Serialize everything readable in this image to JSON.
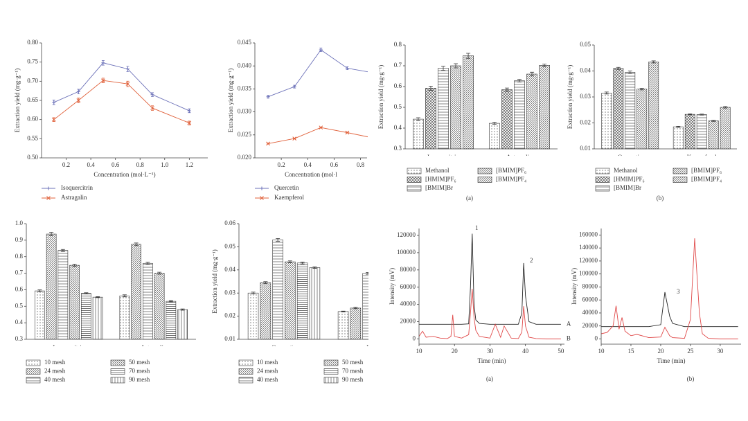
{
  "chart_data": [
    {
      "type": "line",
      "xlabel": "Concentration (mol·L⁻¹)",
      "ylabel": "Extraction yield (mg·g⁻¹)",
      "x": [
        0.1,
        0.3,
        0.5,
        0.7,
        0.9,
        1.2
      ],
      "xlim": [
        0,
        1.35
      ],
      "xticks": [
        0.2,
        0.4,
        0.6,
        0.8,
        {
          "value": 1,
          "label": "1.0"
        },
        1.2
      ],
      "ylim": [
        0.5,
        0.8
      ],
      "yticks": [
        {
          "value": 0.5,
          "label": "0.50"
        },
        0.55,
        {
          "value": 0.6,
          "label": "0.60"
        },
        0.65,
        {
          "value": 0.7,
          "label": "0.70"
        },
        0.75,
        {
          "value": 0.8,
          "label": "0.80"
        }
      ],
      "legend": "below",
      "series": [
        {
          "name": "Isoquercitrin",
          "color": "#6b70b8",
          "marker": "plus",
          "values": [
            0.645,
            0.673,
            0.748,
            0.732,
            0.665,
            0.623
          ],
          "errors": [
            0.006,
            0.006,
            0.006,
            0.007,
            0.005,
            0.005
          ]
        },
        {
          "name": "Astragalin",
          "color": "#e0603a",
          "marker": "x",
          "values": [
            0.6,
            0.65,
            0.702,
            0.693,
            0.63,
            0.591
          ],
          "errors": [
            0.005,
            0.006,
            0.006,
            0.007,
            0.006,
            0.005
          ]
        }
      ]
    },
    {
      "type": "line",
      "xlabel": "Concentration (mol·l",
      "ylabel": "Extraction yield (mg·g⁻¹)",
      "x": [
        0.1,
        0.3,
        0.5,
        0.7,
        0.9
      ],
      "xlim": [
        0,
        0.85
      ],
      "xticks": [
        0.2,
        0.4,
        0.6,
        0.8
      ],
      "ylim": [
        0.02,
        0.045
      ],
      "yticks": [
        {
          "value": 0.02,
          "label": "0.020"
        },
        0.025,
        {
          "value": 0.03,
          "label": "0.030"
        },
        0.035,
        {
          "value": 0.04,
          "label": "0.040"
        },
        0.045
      ],
      "legend": "below",
      "series": [
        {
          "name": "Quercetin",
          "color": "#6b70b8",
          "marker": "plus",
          "values": [
            0.0333,
            0.0355,
            0.0435,
            0.0395,
            0.0385
          ],
          "errors": [
            0.0003,
            0.0003,
            0.0004,
            0.0003,
            0.0003
          ]
        },
        {
          "name": "Kaempferol",
          "color": "#e0603a",
          "marker": "x",
          "values": [
            0.0231,
            0.0242,
            0.0266,
            0.0255,
            0.0243
          ],
          "errors": [
            0.0001,
            0.0001,
            0.0001,
            0.0001,
            0.0001
          ]
        }
      ]
    },
    {
      "type": "bar",
      "ylabel": "Extraction yield (mg·g⁻¹)",
      "caption": "(a)",
      "categories": [
        "Isoquercitrin",
        "Astragalin"
      ],
      "ylim": [
        0.3,
        0.8
      ],
      "yticks": [
        0.3,
        0.4,
        0.5,
        0.6,
        0.7,
        0.8
      ],
      "series": [
        {
          "name": "Methanol",
          "color": "#333333",
          "pattern": "dots",
          "values": [
            0.443,
            0.423
          ],
          "errors": [
            0.007,
            0.005
          ]
        },
        {
          "name": "[HMIM]PF₆",
          "color": "#333333",
          "pattern": "cross",
          "values": [
            0.592,
            0.585
          ],
          "errors": [
            0.01,
            0.008
          ]
        },
        {
          "name": "[BMIM]Br",
          "color": "#333333",
          "pattern": "hlines",
          "values": [
            0.688,
            0.628
          ],
          "errors": [
            0.01,
            0.006
          ]
        },
        {
          "name": "[BMIM]PF₆",
          "color": "#333333",
          "pattern": "ldiag",
          "values": [
            0.7,
            0.66
          ],
          "errors": [
            0.01,
            0.009
          ]
        },
        {
          "name": "[BMIM]PF₄",
          "color": "#333333",
          "pattern": "rdiag",
          "values": [
            0.748,
            0.702
          ],
          "errors": [
            0.012,
            0.006
          ]
        }
      ]
    },
    {
      "type": "bar",
      "ylabel": "Extraction yield (mg·g⁻¹)",
      "caption": "(b)",
      "categories": [
        "Quercetin",
        "Kaempferol"
      ],
      "ylim": [
        0.01,
        0.05
      ],
      "yticks": [
        0.01,
        0.02,
        0.03,
        0.04,
        0.05
      ],
      "series": [
        {
          "name": "Methanol",
          "color": "#333333",
          "pattern": "dots",
          "values": [
            0.0315,
            0.0185
          ],
          "errors": [
            0.0004,
            0.0002
          ]
        },
        {
          "name": "[HMIM]PF₆",
          "color": "#333333",
          "pattern": "cross",
          "values": [
            0.041,
            0.0233
          ],
          "errors": [
            0.0004,
            0.0002
          ]
        },
        {
          "name": "[BMIM]Br",
          "color": "#333333",
          "pattern": "hlines",
          "values": [
            0.0395,
            0.0232
          ],
          "errors": [
            0.0005,
            0.0002
          ]
        },
        {
          "name": "[BMIM]PF₆",
          "color": "#333333",
          "pattern": "ldiag",
          "values": [
            0.033,
            0.0208
          ],
          "errors": [
            0.0003,
            0.0002
          ]
        },
        {
          "name": "[BMIM]PF₄",
          "color": "#333333",
          "pattern": "rdiag",
          "values": [
            0.0435,
            0.026
          ],
          "errors": [
            0.0004,
            0.0003
          ]
        }
      ]
    },
    {
      "type": "bar",
      "categories": [
        "Isoquercitrin",
        "Astragalin"
      ],
      "ylim": [
        0.3,
        1.0
      ],
      "yticks": [
        0.3,
        0.4,
        0.5,
        0.6,
        0.7,
        0.8,
        0.9,
        {
          "value": 1,
          "label": "1.0"
        }
      ],
      "series": [
        {
          "name": "10 mesh",
          "color": "#333333",
          "pattern": "dots",
          "values": [
            0.593,
            0.563
          ],
          "errors": [
            0.006,
            0.006
          ]
        },
        {
          "name": "24 mesh",
          "color": "#333333",
          "pattern": "rdiag",
          "values": [
            0.937,
            0.875
          ],
          "errors": [
            0.01,
            0.008
          ]
        },
        {
          "name": "40 mesh",
          "color": "#333333",
          "pattern": "hlines",
          "values": [
            0.838,
            0.76
          ],
          "errors": [
            0.006,
            0.006
          ]
        },
        {
          "name": "50 mesh",
          "color": "#333333",
          "pattern": "ldiag",
          "values": [
            0.748,
            0.7
          ],
          "errors": [
            0.006,
            0.006
          ]
        },
        {
          "name": "70 mesh",
          "color": "#333333",
          "pattern": "hlines2",
          "values": [
            0.578,
            0.53
          ],
          "errors": [
            0.004,
            0.004
          ]
        },
        {
          "name": "90 mesh",
          "color": "#333333",
          "pattern": "vlines",
          "values": [
            0.555,
            0.48
          ],
          "errors": [
            0.003,
            0.004
          ]
        }
      ]
    },
    {
      "type": "bar",
      "ylabel": "Extraction yield (mg·g⁻¹)",
      "categories": [
        "Quercetin",
        "Kaem"
      ],
      "ylim": [
        0.01,
        0.06
      ],
      "yticks": [
        0.01,
        0.02,
        0.03,
        0.04,
        0.05,
        0.06
      ],
      "series": [
        {
          "name": "10 mesh",
          "color": "#333333",
          "pattern": "dots",
          "values": [
            0.03,
            0.022
          ],
          "errors": [
            0.0004,
            0.0002
          ]
        },
        {
          "name": "24 mesh",
          "color": "#333333",
          "pattern": "rdiag",
          "values": [
            0.0345,
            0.0235
          ],
          "errors": [
            0.0004,
            0.0003
          ]
        },
        {
          "name": "40 mesh",
          "color": "#333333",
          "pattern": "hlines",
          "values": [
            0.053,
            0.0385
          ],
          "errors": [
            0.0006,
            0.0004
          ]
        },
        {
          "name": "50 mesh",
          "color": "#333333",
          "pattern": "ldiag",
          "values": [
            0.0435,
            null
          ],
          "errors": [
            0.0004,
            null
          ]
        },
        {
          "name": "70 mesh",
          "color": "#333333",
          "pattern": "hlines2",
          "values": [
            0.043,
            null
          ],
          "errors": [
            0.0004,
            null
          ]
        },
        {
          "name": "90 mesh",
          "color": "#333333",
          "pattern": "vlines",
          "values": [
            0.041,
            null
          ],
          "errors": [
            0.0003,
            null
          ]
        }
      ]
    },
    {
      "type": "line",
      "xlabel": "Time (min)",
      "ylabel": "Intensity (mV)",
      "caption": "(a)",
      "peak_labels": [
        "1",
        "2"
      ],
      "legend": "line-end",
      "x": [
        10,
        11,
        12,
        14,
        16,
        18,
        19,
        19.5,
        20,
        22,
        24,
        24.5,
        25,
        25.5,
        26,
        27,
        30,
        31.5,
        33,
        34,
        36,
        38,
        39,
        39.5,
        40,
        41,
        43,
        46,
        50
      ],
      "xlim": [
        10,
        51
      ],
      "xticks": [
        10,
        20,
        30,
        40,
        50
      ],
      "ylim": [
        -6000,
        128000
      ],
      "yticks": [
        0,
        20000,
        40000,
        60000,
        80000,
        100000,
        120000
      ],
      "series": [
        {
          "name": "A",
          "color": "#222222",
          "values": [
            17000,
            17000,
            17000,
            17000,
            17000,
            17000,
            17000,
            17000,
            17000,
            17000,
            17500,
            60000,
            122000,
            40000,
            22000,
            18000,
            17000,
            17000,
            17000,
            17000,
            17000,
            17000,
            30000,
            88000,
            50000,
            20000,
            17000,
            17000,
            17000
          ]
        },
        {
          "name": "B",
          "color": "#e04848",
          "values": [
            3000,
            9000,
            2000,
            3000,
            1000,
            500,
            3000,
            28000,
            3000,
            1000,
            5000,
            30000,
            58000,
            25000,
            10000,
            3000,
            1000,
            17000,
            2000,
            15000,
            1000,
            500,
            8000,
            38000,
            15000,
            2000,
            500,
            0,
            0
          ]
        }
      ]
    },
    {
      "type": "line",
      "xlabel": "Time (min)",
      "ylabel": "Intensity (mV)",
      "caption": "(b)",
      "peak_labels": [
        "3"
      ],
      "x": [
        10,
        11,
        12,
        12.5,
        13,
        13.5,
        14,
        15,
        16,
        18,
        20,
        20.7,
        21.5,
        22,
        24,
        25,
        25.7,
        26.5,
        27,
        28,
        30,
        33
      ],
      "xlim": [
        10,
        33.5
      ],
      "xticks": [
        10,
        15,
        20,
        25,
        30
      ],
      "ylim": [
        -8000,
        170000
      ],
      "yticks": [
        0,
        20000,
        40000,
        60000,
        80000,
        100000,
        120000,
        140000,
        160000
      ],
      "series": [
        {
          "color": "#222222",
          "values": [
            19000,
            19000,
            19000,
            19000,
            19000,
            19000,
            19000,
            19000,
            19000,
            19000,
            22000,
            72000,
            35000,
            24000,
            19000,
            19000,
            19000,
            19000,
            19000,
            19000,
            19000,
            19000
          ]
        },
        {
          "color": "#e04848",
          "values": [
            8000,
            10000,
            20000,
            51000,
            15000,
            33000,
            12000,
            5000,
            7000,
            2000,
            3000,
            18000,
            5000,
            2000,
            1000,
            30000,
            155000,
            40000,
            8000,
            1000,
            0,
            0
          ]
        }
      ]
    }
  ]
}
